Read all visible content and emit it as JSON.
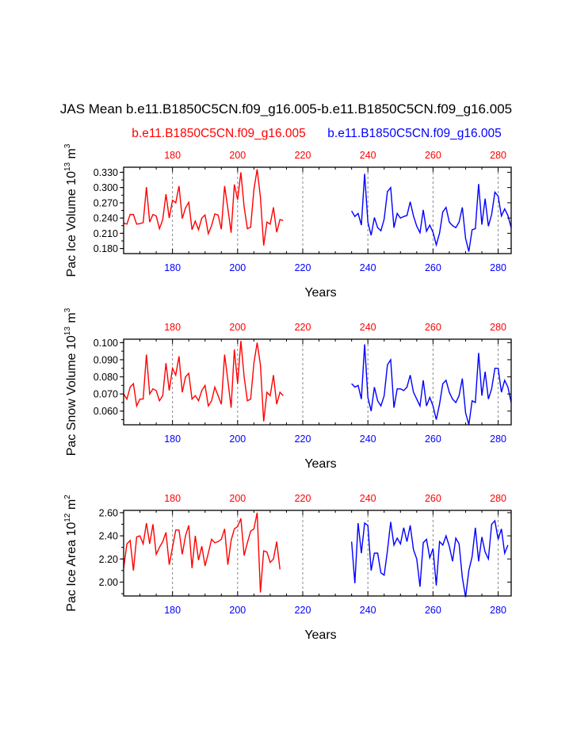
{
  "title": "JAS Mean b.e11.B1850C5CN.f09_g16.005-b.e11.B1850C5CN.f09_g16.005",
  "legend": {
    "left_label": "b.e11.B1850C5CN.f09_g16.005",
    "right_label": "b.e11.B1850C5CN.f09_g16.005",
    "left_color": "#ff0000",
    "right_color": "#0000ff"
  },
  "colors": {
    "red": "#ff0000",
    "blue": "#0000ff",
    "axis": "#000000",
    "grid": "#888888"
  },
  "chart_data": [
    {
      "type": "line",
      "ylabel": "Pac Ice Volume 10",
      "ylabel_exp": "13",
      "ylabel_unit": " m",
      "ylabel_unit_exp": "3",
      "xlabel": "Years",
      "xlim": [
        165,
        284
      ],
      "ylim": [
        0.17,
        0.34
      ],
      "yticks": [
        "0.330",
        "0.300",
        "0.270",
        "0.240",
        "0.210",
        "0.180"
      ],
      "yticks_values": [
        0.33,
        0.3,
        0.27,
        0.24,
        0.21,
        0.18
      ],
      "xticks_bottom": [
        "180",
        "200",
        "220",
        "240",
        "260",
        "280"
      ],
      "xticks_top": [
        "180",
        "200",
        "220",
        "240",
        "260",
        "280"
      ],
      "xticks_values": [
        180,
        200,
        220,
        240,
        260,
        280
      ],
      "series": [
        {
          "name": "b.e11.B1850C5CN.f09_g16.005 (red)",
          "color": "#ff0000",
          "x_start": 165,
          "values": [
            0.23,
            0.228,
            0.247,
            0.247,
            0.228,
            0.229,
            0.231,
            0.301,
            0.232,
            0.247,
            0.244,
            0.219,
            0.237,
            0.287,
            0.24,
            0.275,
            0.27,
            0.303,
            0.239,
            0.26,
            0.271,
            0.217,
            0.234,
            0.217,
            0.24,
            0.246,
            0.209,
            0.225,
            0.248,
            0.246,
            0.218,
            0.303,
            0.259,
            0.211,
            0.306,
            0.276,
            0.33,
            0.262,
            0.219,
            0.222,
            0.296,
            0.336,
            0.281,
            0.186,
            0.232,
            0.228,
            0.261,
            0.212,
            0.237,
            0.235
          ]
        },
        {
          "name": "b.e11.B1850C5CN.f09_g16.005 (blue)",
          "color": "#0000ff",
          "x_start": 235,
          "values": [
            0.254,
            0.243,
            0.249,
            0.226,
            0.327,
            0.232,
            0.206,
            0.241,
            0.221,
            0.215,
            0.238,
            0.292,
            0.3,
            0.221,
            0.249,
            0.24,
            0.243,
            0.245,
            0.272,
            0.244,
            0.224,
            0.211,
            0.256,
            0.214,
            0.226,
            0.212,
            0.187,
            0.21,
            0.252,
            0.261,
            0.232,
            0.225,
            0.221,
            0.232,
            0.261,
            0.2,
            0.174,
            0.217,
            0.219,
            0.307,
            0.227,
            0.278,
            0.224,
            0.247,
            0.291,
            0.283,
            0.244,
            0.258,
            0.245,
            0.221
          ]
        }
      ]
    },
    {
      "type": "line",
      "ylabel": "Pac Snow Volume 10",
      "ylabel_exp": "13",
      "ylabel_unit": " m",
      "ylabel_unit_exp": "3",
      "xlabel": "Years",
      "xlim": [
        165,
        284
      ],
      "ylim": [
        0.052,
        0.102
      ],
      "yticks": [
        "0.100",
        "0.090",
        "0.080",
        "0.070",
        "0.060"
      ],
      "yticks_values": [
        0.1,
        0.09,
        0.08,
        0.07,
        0.06
      ],
      "xticks_bottom": [
        "180",
        "200",
        "220",
        "240",
        "260",
        "280"
      ],
      "xticks_top": [
        "180",
        "200",
        "220",
        "240",
        "260",
        "280"
      ],
      "xticks_values": [
        180,
        200,
        220,
        240,
        260,
        280
      ],
      "series": [
        {
          "name": "b.e11.B1850C5CN.f09_g16.005 (red)",
          "color": "#ff0000",
          "x_start": 165,
          "values": [
            0.07,
            0.067,
            0.074,
            0.076,
            0.063,
            0.067,
            0.067,
            0.093,
            0.07,
            0.073,
            0.072,
            0.066,
            0.069,
            0.088,
            0.072,
            0.085,
            0.081,
            0.092,
            0.071,
            0.08,
            0.082,
            0.067,
            0.069,
            0.066,
            0.072,
            0.075,
            0.063,
            0.066,
            0.074,
            0.069,
            0.064,
            0.093,
            0.078,
            0.062,
            0.096,
            0.076,
            0.101,
            0.08,
            0.066,
            0.067,
            0.088,
            0.1,
            0.087,
            0.054,
            0.071,
            0.069,
            0.081,
            0.064,
            0.071,
            0.069
          ]
        },
        {
          "name": "b.e11.B1850C5CN.f09_g16.005 (blue)",
          "color": "#0000ff",
          "x_start": 235,
          "values": [
            0.076,
            0.074,
            0.075,
            0.067,
            0.099,
            0.068,
            0.06,
            0.074,
            0.066,
            0.063,
            0.069,
            0.087,
            0.09,
            0.062,
            0.073,
            0.073,
            0.072,
            0.074,
            0.081,
            0.071,
            0.067,
            0.063,
            0.078,
            0.063,
            0.068,
            0.063,
            0.055,
            0.064,
            0.076,
            0.078,
            0.071,
            0.067,
            0.065,
            0.069,
            0.079,
            0.059,
            0.052,
            0.066,
            0.065,
            0.094,
            0.069,
            0.083,
            0.067,
            0.073,
            0.085,
            0.085,
            0.071,
            0.078,
            0.074,
            0.065
          ]
        }
      ]
    },
    {
      "type": "line",
      "ylabel": "Pac Ice Area 10",
      "ylabel_exp": "12",
      "ylabel_unit": " m",
      "ylabel_unit_exp": "2",
      "xlabel": "Years",
      "xlim": [
        165,
        284
      ],
      "ylim": [
        1.88,
        2.62
      ],
      "yticks": [
        "2.60",
        "2.40",
        "2.20",
        "2.00"
      ],
      "yticks_values": [
        2.6,
        2.4,
        2.2,
        2.0
      ],
      "xticks_bottom": [
        "180",
        "200",
        "220",
        "240",
        "260",
        "280"
      ],
      "xticks_top": [
        "180",
        "200",
        "220",
        "240",
        "260",
        "280"
      ],
      "xticks_values": [
        180,
        200,
        220,
        240,
        260,
        280
      ],
      "series": [
        {
          "name": "b.e11.B1850C5CN.f09_g16.005 (red)",
          "color": "#ff0000",
          "x_start": 165,
          "values": [
            2.12,
            2.33,
            2.36,
            2.1,
            2.39,
            2.4,
            2.33,
            2.51,
            2.33,
            2.5,
            2.24,
            2.3,
            2.35,
            2.43,
            2.15,
            2.3,
            2.45,
            2.45,
            2.24,
            2.4,
            2.49,
            2.12,
            2.4,
            2.19,
            2.31,
            2.14,
            2.25,
            2.37,
            2.34,
            2.35,
            2.37,
            2.46,
            2.15,
            2.36,
            2.46,
            2.48,
            2.55,
            2.23,
            2.34,
            2.44,
            2.46,
            2.6,
            1.91,
            2.27,
            2.26,
            2.17,
            2.2,
            2.35,
            2.11
          ]
        },
        {
          "name": "b.e11.B1850C5CN.f09_g16.005 (blue)",
          "color": "#0000ff",
          "x_start": 235,
          "values": [
            2.35,
            1.99,
            2.51,
            2.25,
            2.51,
            2.49,
            2.1,
            2.25,
            2.25,
            2.08,
            2.06,
            2.27,
            2.52,
            2.32,
            2.38,
            2.33,
            2.47,
            2.35,
            2.49,
            2.28,
            2.2,
            1.96,
            2.34,
            2.37,
            2.21,
            2.29,
            1.97,
            2.35,
            2.32,
            2.4,
            2.31,
            2.18,
            2.38,
            2.33,
            2.04,
            1.87,
            2.1,
            2.22,
            2.47,
            2.18,
            2.39,
            2.26,
            2.2,
            2.5,
            2.53,
            2.37,
            2.46,
            2.25,
            2.32
          ]
        }
      ]
    }
  ]
}
